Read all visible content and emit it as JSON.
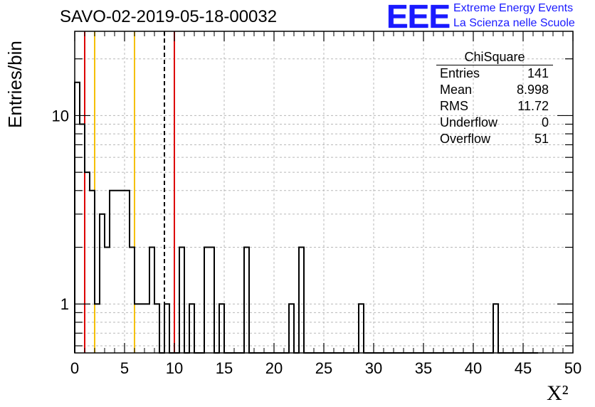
{
  "chart_data": {
    "type": "histogram",
    "title": "SAVO-02-2019-05-18-00032",
    "xlabel": "X²",
    "ylabel": "Entries/bin",
    "xlim": [
      0,
      50
    ],
    "ylim": [
      0.55,
      28
    ],
    "yscale": "log",
    "grid": true,
    "bin_width": 0.5,
    "x_ticks": [
      0,
      5,
      10,
      15,
      20,
      25,
      30,
      35,
      40,
      45,
      50
    ],
    "y_ticks": [
      1,
      10
    ],
    "counts": [
      15,
      9,
      5,
      4,
      1,
      3,
      2,
      4,
      4,
      4,
      4,
      2,
      1,
      1,
      1,
      2,
      1,
      0,
      1,
      0,
      0,
      2,
      0,
      1,
      0,
      0,
      2,
      2,
      0,
      1,
      0,
      0,
      0,
      0,
      2,
      0,
      0,
      0,
      0,
      0,
      0,
      0,
      0,
      1,
      0,
      2,
      0,
      0,
      0,
      0,
      0,
      0,
      0,
      0,
      0,
      0,
      0,
      1,
      0,
      0,
      0,
      0,
      0,
      0,
      0,
      0,
      0,
      0,
      0,
      0,
      0,
      0,
      0,
      0,
      0,
      0,
      0,
      0,
      0,
      0,
      0,
      0,
      0,
      0,
      1,
      0,
      0,
      0,
      0,
      0,
      0,
      0,
      0
    ],
    "vertical_lines": [
      {
        "x": 1,
        "color": "#dd0000",
        "style": "solid"
      },
      {
        "x": 2,
        "color": "#f5c000",
        "style": "solid"
      },
      {
        "x": 6,
        "color": "#f5c000",
        "style": "solid"
      },
      {
        "x": 9,
        "color": "#000000",
        "style": "dashed"
      },
      {
        "x": 10,
        "color": "#dd0000",
        "style": "solid"
      }
    ],
    "stats_box": {
      "title": "ChiSquare",
      "rows": [
        {
          "label": "Entries",
          "value": "141"
        },
        {
          "label": "Mean",
          "value": "8.998"
        },
        {
          "label": "RMS",
          "value": "11.72"
        },
        {
          "label": "Underflow",
          "value": "0"
        },
        {
          "label": "Overflow",
          "value": "51"
        }
      ]
    }
  },
  "logo": {
    "mark": "EEE",
    "line1": "Extreme Energy Events",
    "line2": "La Scienza nelle Scuole"
  }
}
